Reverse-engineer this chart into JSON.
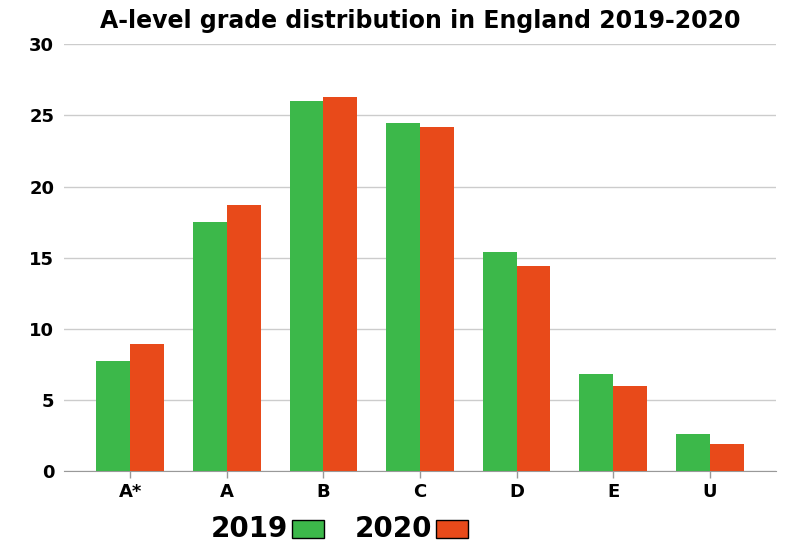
{
  "title": "A-level grade distribution in England 2019-2020",
  "categories": [
    "A*",
    "A",
    "B",
    "C",
    "D",
    "E",
    "U"
  ],
  "values_2019": [
    7.7,
    17.5,
    26.0,
    24.5,
    15.4,
    6.8,
    2.6
  ],
  "values_2020": [
    8.9,
    18.7,
    26.3,
    24.2,
    14.4,
    6.0,
    1.9
  ],
  "color_2019": "#3cb84a",
  "color_2020": "#e84a1a",
  "ylim": [
    0,
    30
  ],
  "yticks": [
    0,
    5,
    10,
    15,
    20,
    25,
    30
  ],
  "legend_labels": [
    "2019",
    "2020"
  ],
  "bar_width": 0.35,
  "background_color": "#ffffff",
  "grid_color": "#cccccc",
  "title_fontsize": 17,
  "tick_fontsize": 13,
  "legend_fontsize": 20
}
